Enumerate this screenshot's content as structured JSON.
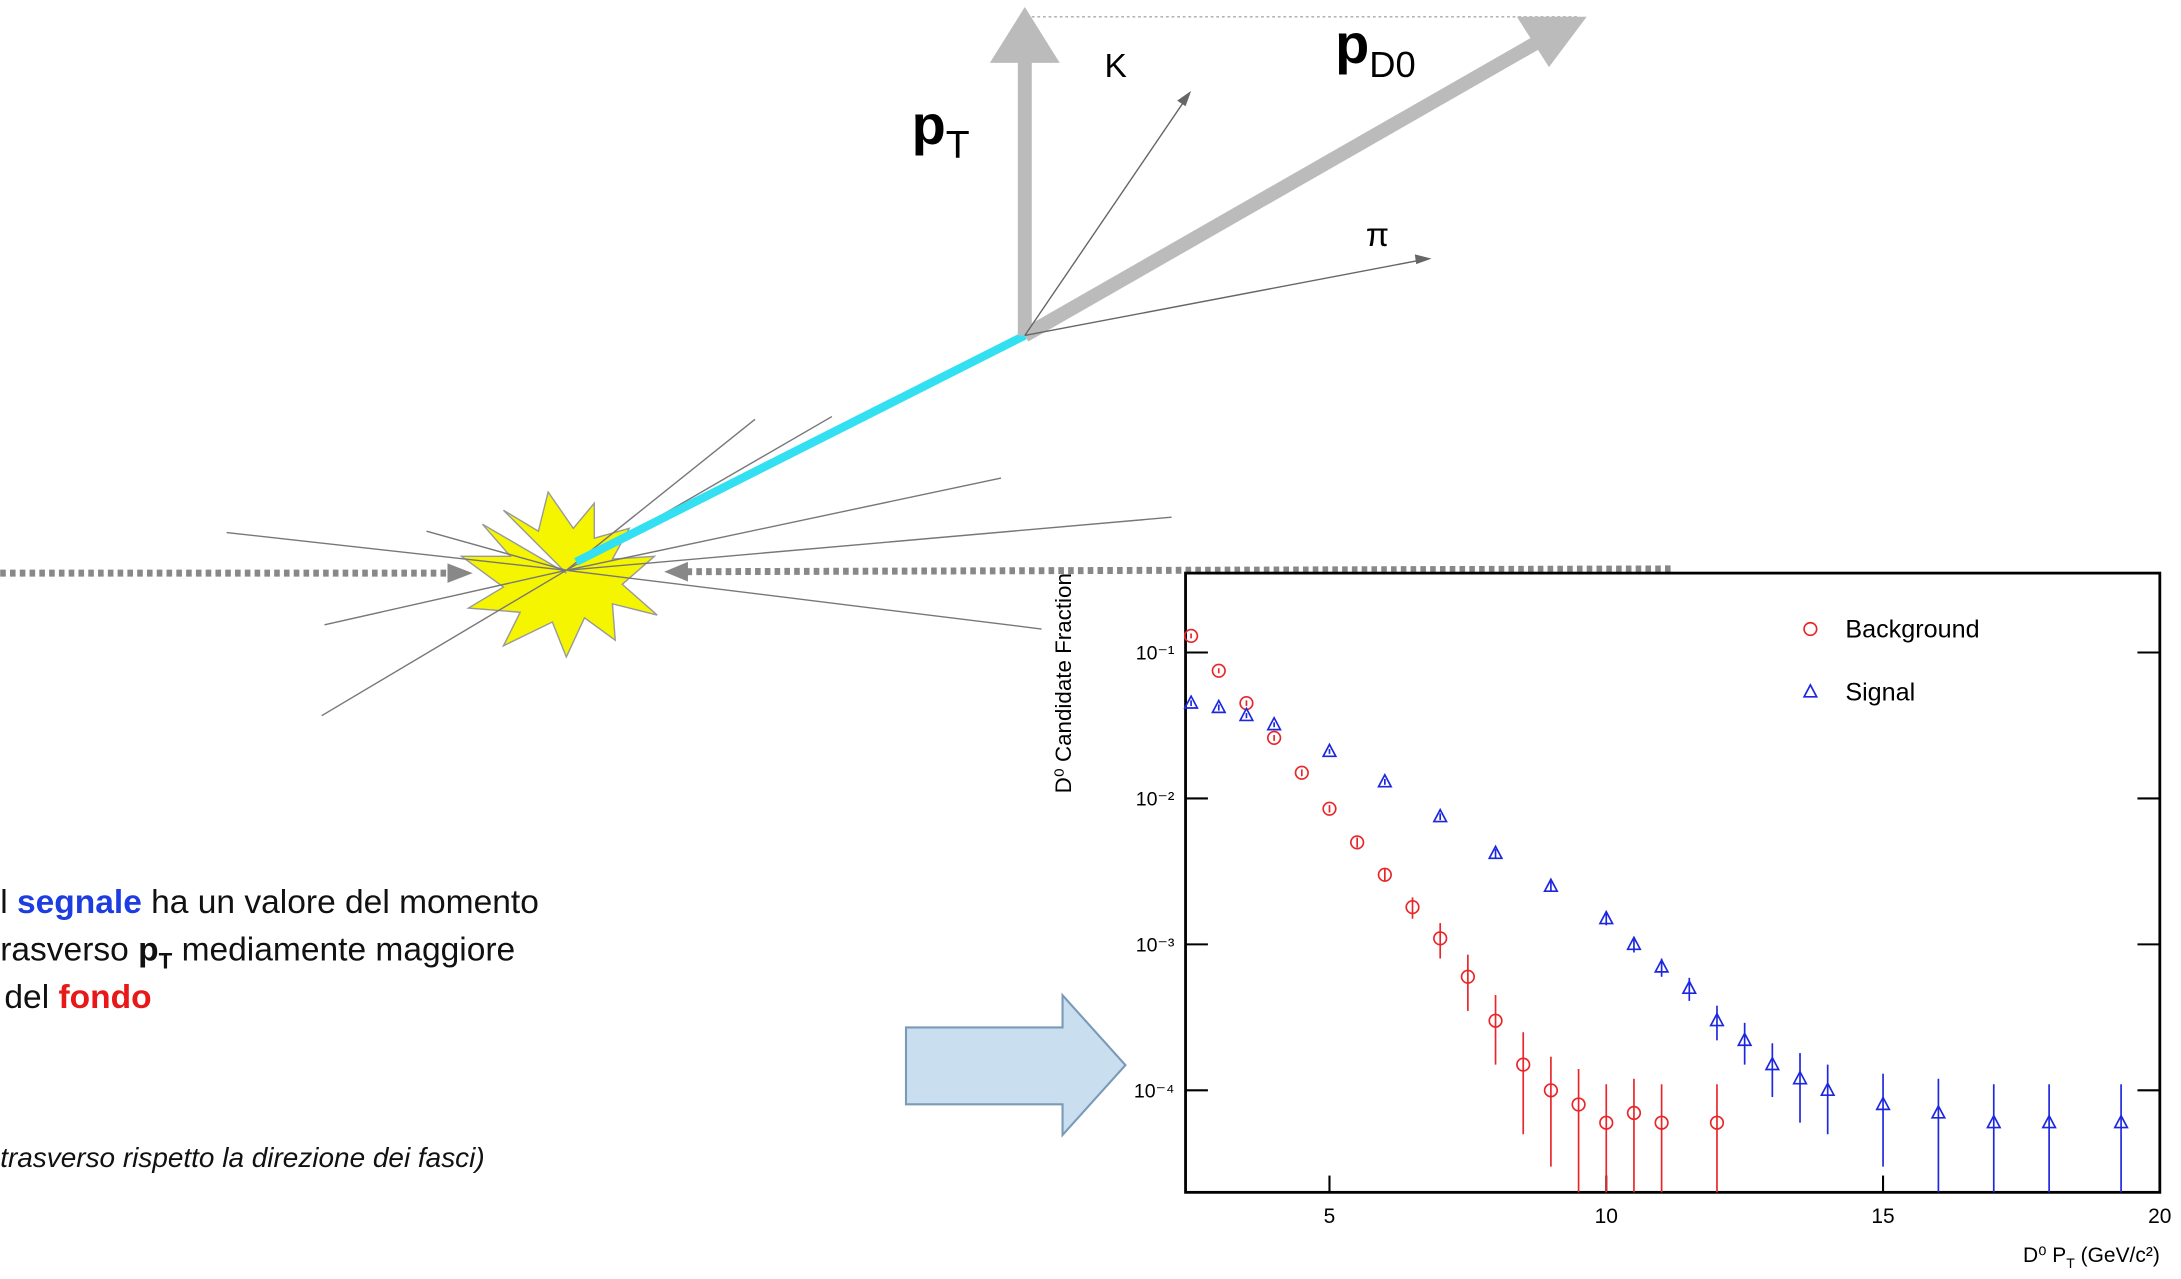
{
  "slide": {
    "labels": {
      "pt": [
        "p",
        "T"
      ],
      "k": "K",
      "pd0": [
        "p",
        "D0"
      ],
      "pi": "π"
    },
    "text": {
      "line1": [
        "l ",
        "segnale",
        " ha un valore del momento"
      ],
      "line2": [
        "rasverso ",
        "p",
        "T",
        " mediamente maggiore"
      ],
      "line3": [
        "del ",
        "fondo"
      ],
      "note": "trasverso rispetto la direzione dei fasci)"
    }
  },
  "chart_data": {
    "type": "scatter",
    "ylabel": "D⁰ Candidate Fraction",
    "xlabel_parts": [
      "D⁰ P",
      "T",
      " (GeV/c²)"
    ],
    "xlim": [
      2.4,
      20
    ],
    "ylim": [
      2e-05,
      0.35
    ],
    "log_y": true,
    "legend": "upper-right",
    "xticks": [
      5,
      10,
      15,
      20
    ],
    "yticks": [
      {
        "value": 0.0001,
        "label": "10⁻⁴"
      },
      {
        "value": 0.001,
        "label": "10⁻³"
      },
      {
        "value": 0.01,
        "label": "10⁻²"
      },
      {
        "value": 0.1,
        "label": "10⁻¹"
      }
    ],
    "series": [
      {
        "name": "Background",
        "color": "#e8262a",
        "marker": "circle",
        "x": [
          2.5,
          3,
          3.5,
          4,
          4.5,
          5,
          5.5,
          6,
          6.5,
          7,
          7.5,
          8,
          8.5,
          9,
          9.5,
          10,
          10.5,
          11,
          12
        ],
        "values": [
          0.13,
          0.075,
          0.045,
          0.026,
          0.015,
          0.0085,
          0.005,
          0.003,
          0.0018,
          0.0011,
          0.0006,
          0.0003,
          0.00015,
          0.0001,
          8e-05,
          6e-05,
          7e-05,
          6e-05,
          6e-05
        ],
        "errors": [
          0.005,
          0.003,
          0.002,
          0.0012,
          0.0008,
          0.0005,
          0.0004,
          0.0003,
          0.0003,
          0.0003,
          0.00025,
          0.00015,
          0.0001,
          7e-05,
          6e-05,
          5e-05,
          5e-05,
          5e-05,
          5e-05
        ]
      },
      {
        "name": "Signal",
        "color": "#1d27e0",
        "marker": "triangle",
        "x": [
          2.5,
          3,
          3.5,
          4,
          5,
          6,
          7,
          8,
          9,
          10,
          10.5,
          11,
          11.5,
          12,
          12.5,
          13,
          13.5,
          14,
          15,
          16,
          17,
          18,
          19.3
        ],
        "values": [
          0.045,
          0.042,
          0.037,
          0.032,
          0.021,
          0.013,
          0.0075,
          0.0042,
          0.0025,
          0.0015,
          0.001,
          0.0007,
          0.0005,
          0.0003,
          0.00022,
          0.00015,
          0.00012,
          0.0001,
          8e-05,
          7e-05,
          6e-05,
          6e-05,
          6e-05
        ],
        "errors": [
          0.002,
          0.002,
          0.0015,
          0.0012,
          0.0008,
          0.0006,
          0.0004,
          0.0003,
          0.0002,
          0.00015,
          0.00012,
          0.0001,
          9e-05,
          8e-05,
          7e-05,
          6e-05,
          6e-05,
          5e-05,
          5e-05,
          5e-05,
          5e-05,
          5e-05,
          5e-05
        ]
      }
    ]
  }
}
